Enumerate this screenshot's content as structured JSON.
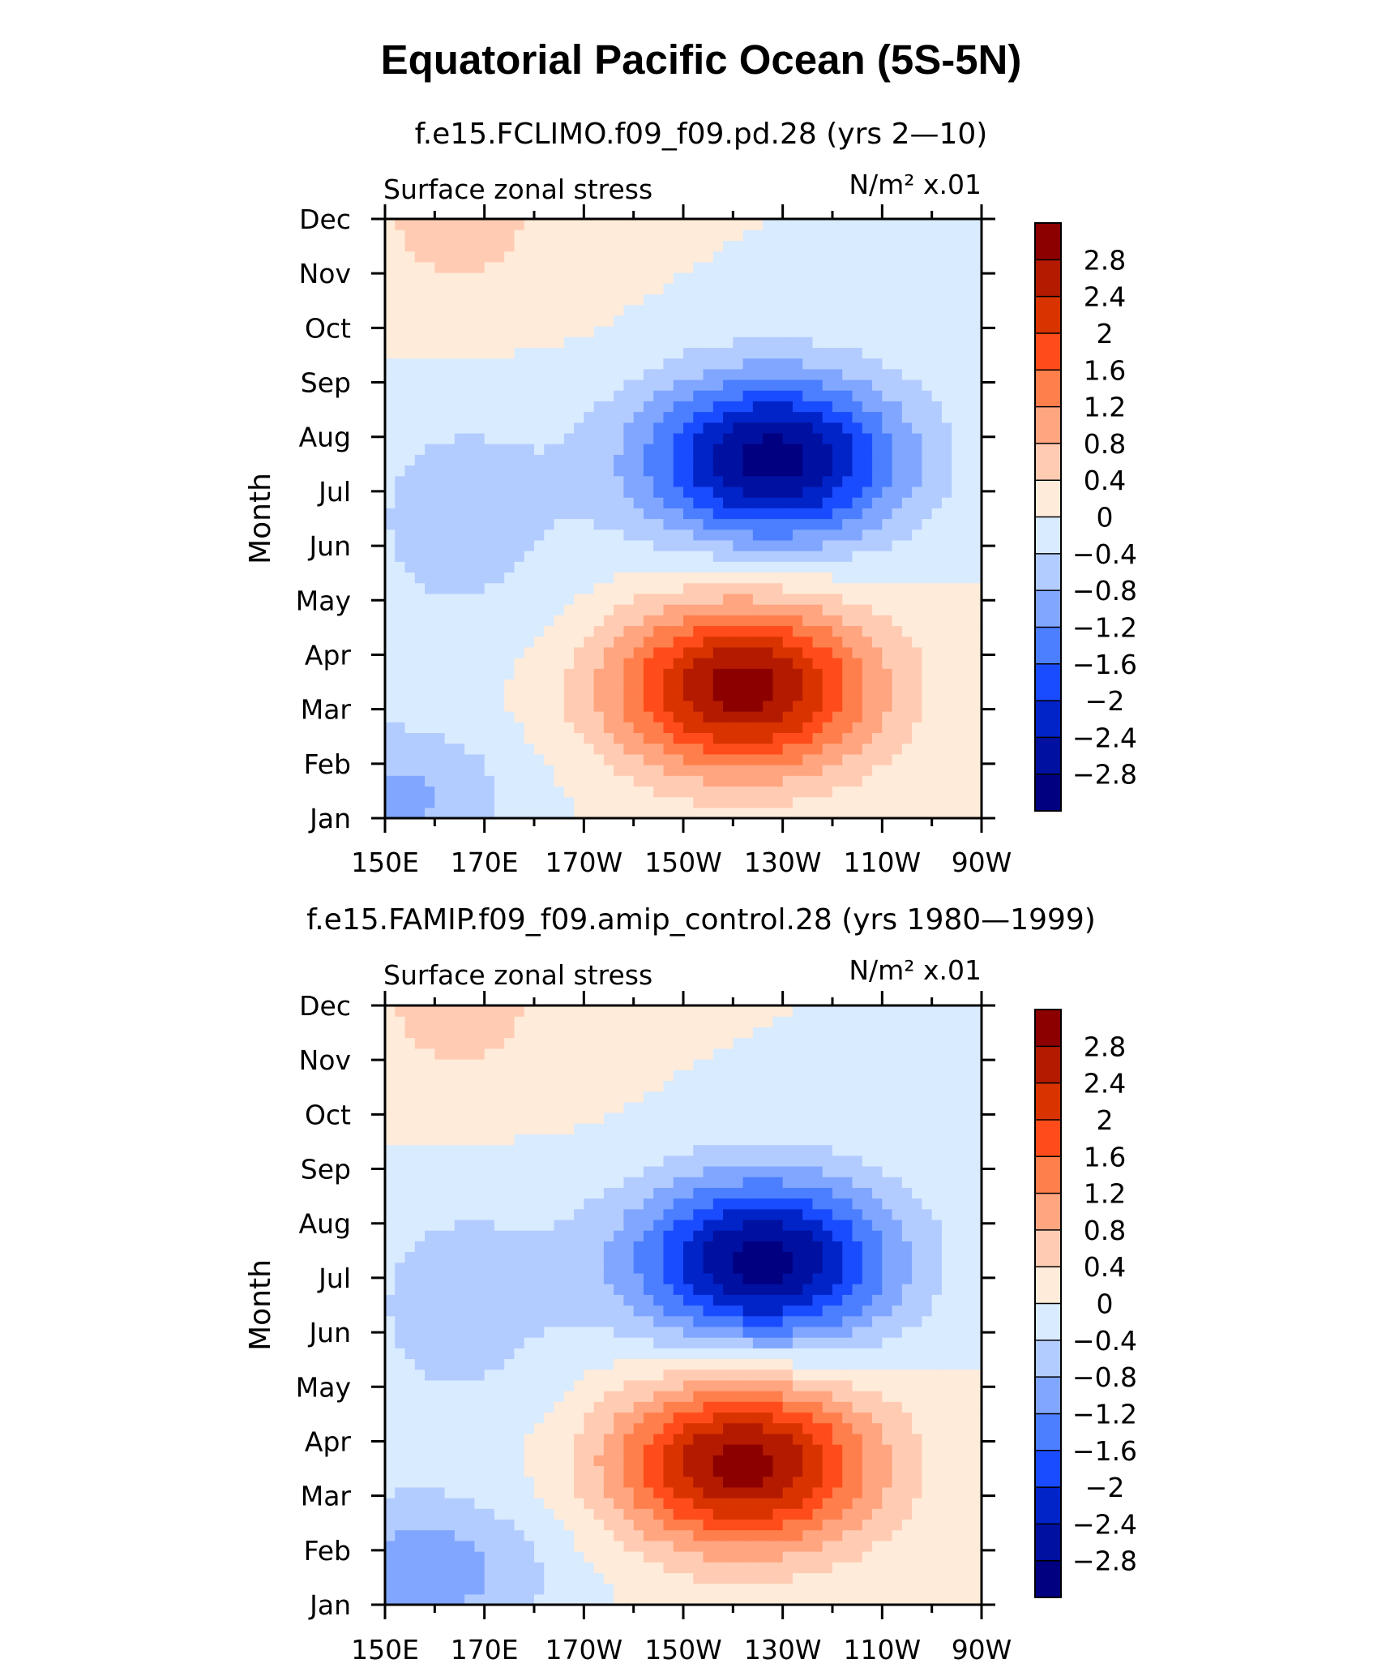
{
  "title": "Equatorial Pacific Ocean (5S-5N)",
  "chart_data": [
    {
      "type": "heatmap",
      "subtitle": "f.e15.FCLIMO.f09_f09.pd.28 (yrs 2—10)",
      "left_label": "Surface zonal stress",
      "right_label": "N/m² x.01",
      "ylabel": "Month",
      "xlabel": "",
      "x_ticks": [
        "150E",
        "170E",
        "170W",
        "150W",
        "130W",
        "110W",
        "90W"
      ],
      "y_ticks": [
        "Jan",
        "Feb",
        "Mar",
        "Apr",
        "May",
        "Jun",
        "Jul",
        "Aug",
        "Sep",
        "Oct",
        "Nov",
        "Dec"
      ],
      "x_range_deg_east": [
        150,
        270
      ],
      "colorbar": {
        "labels": [
          "2.8",
          "2.4",
          "2",
          "1.6",
          "1.2",
          "0.8",
          "0.4",
          "0",
          "−0.4",
          "−0.8",
          "−1.2",
          "−1.6",
          "−2",
          "−2.4",
          "−2.8"
        ],
        "colors": [
          "#8c0000",
          "#b31a00",
          "#d93300",
          "#ff4c1a",
          "#ff7f4c",
          "#ffa580",
          "#ffccb3",
          "#ffebd9",
          "#d9ebff",
          "#b3ccff",
          "#80a6ff",
          "#4c7fff",
          "#1a4cff",
          "#0024c8",
          "#0010a0",
          "#000080"
        ]
      },
      "features": [
        {
          "name": "positive maximum",
          "lon": 222,
          "month": 3.4,
          "value": 3.0
        },
        {
          "name": "negative minimum",
          "lon": 228,
          "month": 7.6,
          "value": -3.0
        },
        {
          "name": "negative secondary",
          "lon": 156,
          "month": 1.3,
          "value": -1.3
        }
      ]
    },
    {
      "type": "heatmap",
      "subtitle": "f.e15.FAMIP.f09_f09.amip_control.28 (yrs 1980—1999)",
      "left_label": "Surface zonal stress",
      "right_label": "N/m² x.01",
      "ylabel": "Month",
      "xlabel": "",
      "x_ticks": [
        "150E",
        "170E",
        "170W",
        "150W",
        "130W",
        "110W",
        "90W"
      ],
      "y_ticks": [
        "Jan",
        "Feb",
        "Mar",
        "Apr",
        "May",
        "Jun",
        "Jul",
        "Aug",
        "Sep",
        "Oct",
        "Nov",
        "Dec"
      ],
      "x_range_deg_east": [
        150,
        270
      ],
      "colorbar": {
        "labels": [
          "2.8",
          "2.4",
          "2",
          "1.6",
          "1.2",
          "0.8",
          "0.4",
          "0",
          "−0.4",
          "−0.8",
          "−1.2",
          "−1.6",
          "−2",
          "−2.4",
          "−2.8"
        ],
        "colors": [
          "#8c0000",
          "#b31a00",
          "#d93300",
          "#ff4c1a",
          "#ff7f4c",
          "#ffa580",
          "#ffccb3",
          "#ffebd9",
          "#d9ebff",
          "#b3ccff",
          "#80a6ff",
          "#4c7fff",
          "#1a4cff",
          "#0024c8",
          "#0010a0",
          "#000080"
        ]
      },
      "features": [
        {
          "name": "positive maximum",
          "lon": 222,
          "month": 3.6,
          "value": 3.0
        },
        {
          "name": "negative minimum",
          "lon": 226,
          "month": 7.3,
          "value": -3.0
        },
        {
          "name": "negative secondary",
          "lon": 160,
          "month": 1.5,
          "value": -1.5
        }
      ]
    }
  ]
}
